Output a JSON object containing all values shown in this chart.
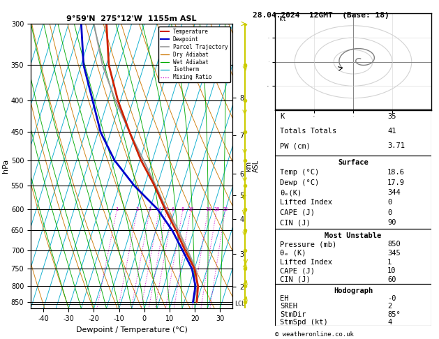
{
  "title_left": "9°59'N  275°12'W  1155m ASL",
  "title_right": "28.04.2024  12GMT  (Base: 18)",
  "xlabel": "Dewpoint / Temperature (°C)",
  "ylabel_left": "hPa",
  "bg_color": "#ffffff",
  "temp_color": "#cc2200",
  "dewp_color": "#0000cc",
  "parcel_color": "#999999",
  "dry_adiabat_color": "#cc7700",
  "wet_adiabat_color": "#00aa00",
  "isotherm_color": "#00aacc",
  "mixing_color": "#cc00cc",
  "wind_color": "#cccc00",
  "temperature": [
    20.0,
    18.5,
    15.0,
    9.0,
    3.0,
    -4.0,
    -11.0,
    -19.5,
    -27.5,
    -36.0,
    -44.0,
    -50.0
  ],
  "dewpoint": [
    18.5,
    17.5,
    14.0,
    8.0,
    1.5,
    -7.0,
    -19.0,
    -30.0,
    -39.0,
    -46.0,
    -54.0,
    -60.0
  ],
  "pressure_sounding": [
    850,
    800,
    750,
    700,
    650,
    600,
    550,
    500,
    450,
    400,
    350,
    300
  ],
  "parcel_temp": [
    18.6,
    18.3,
    15.5,
    10.0,
    4.0,
    -3.5,
    -10.5,
    -18.5,
    -27.5,
    -37.0,
    -46.5,
    -55.0
  ],
  "xlim": [
    -45,
    35
  ],
  "pmin": 300,
  "pmax": 870,
  "skew": 35.0,
  "pressure_levels": [
    300,
    350,
    400,
    450,
    500,
    550,
    600,
    650,
    700,
    750,
    800,
    850
  ],
  "xticks": [
    -40,
    -30,
    -20,
    -10,
    0,
    10,
    20,
    30
  ],
  "km_ticks": [
    2,
    3,
    4,
    5,
    6,
    7,
    8
  ],
  "km_pressures": [
    802,
    710,
    622,
    570,
    526,
    455,
    395
  ],
  "lcl_pressure": 855,
  "mixing_ratio_values": [
    1,
    2,
    3,
    4,
    5,
    6,
    8,
    10,
    16,
    20,
    25
  ],
  "info_K": 35,
  "info_TT": 41,
  "info_PW": "3.71",
  "surf_temp": "18.6",
  "surf_dewp": "17.9",
  "surf_thetae": 344,
  "surf_li": 0,
  "surf_cape": 0,
  "surf_cin": 90,
  "mu_pressure": 850,
  "mu_thetae": 345,
  "mu_li": 1,
  "mu_cape": 10,
  "mu_cin": 60,
  "hodo_EH": "-0",
  "hodo_SREH": 2,
  "hodo_StmDir": "85°",
  "hodo_StmSpd": 4,
  "copyright": "© weatheronline.co.uk",
  "wind_p": [
    300,
    350,
    400,
    450,
    500,
    550,
    600,
    650,
    700,
    750,
    800,
    850
  ],
  "wind_u": [
    1,
    1,
    0,
    0,
    0,
    -1,
    -1,
    0,
    1,
    1,
    2,
    2
  ],
  "wind_v": [
    0,
    1,
    2,
    3,
    3,
    2,
    1,
    1,
    2,
    -1,
    -1,
    -1
  ]
}
